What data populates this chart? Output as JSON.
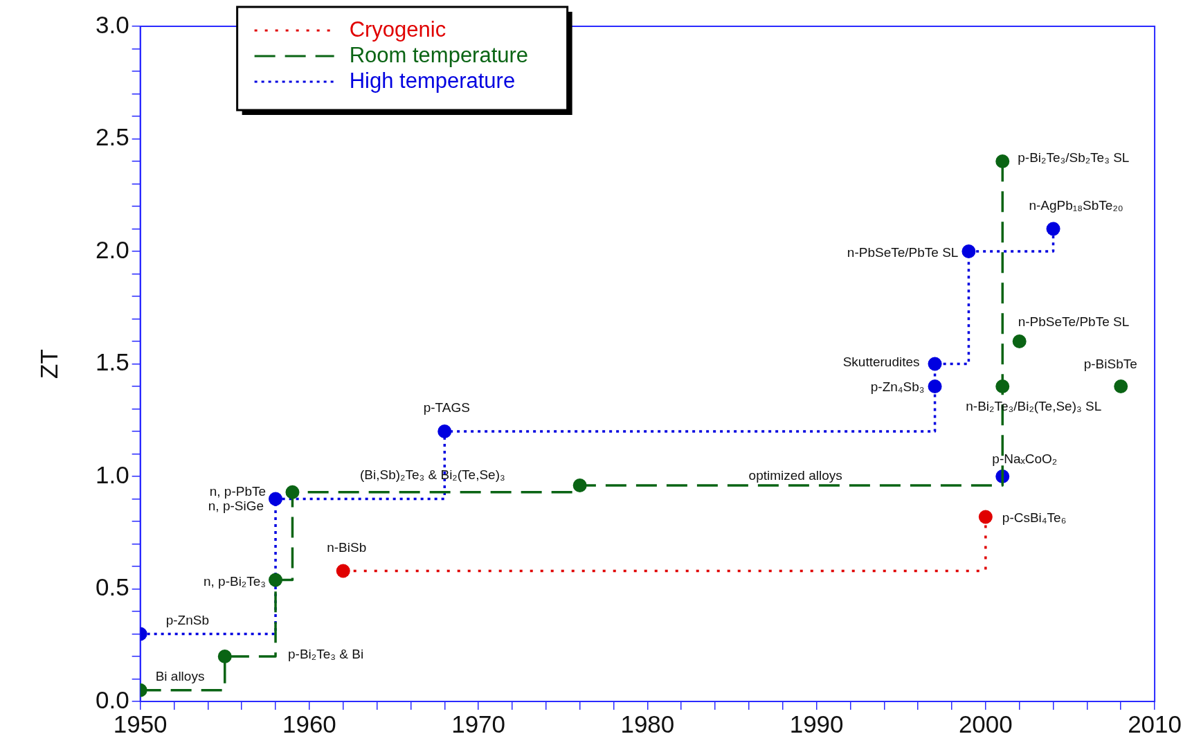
{
  "chart_data": {
    "type": "step",
    "ylabel": "ZT",
    "legend": "top left",
    "marker": "circle",
    "grid": false,
    "xlim": [
      1950,
      2010
    ],
    "ylim": [
      0,
      3
    ],
    "xticks": [
      1950,
      {
        "value": 1952,
        "label": null
      },
      {
        "value": 1954,
        "label": null
      },
      {
        "value": 1956,
        "label": null
      },
      {
        "value": 1958,
        "label": null
      },
      1960,
      {
        "value": 1962,
        "label": null
      },
      {
        "value": 1964,
        "label": null
      },
      {
        "value": 1966,
        "label": null
      },
      {
        "value": 1968,
        "label": null
      },
      1970,
      {
        "value": 1972,
        "label": null
      },
      {
        "value": 1974,
        "label": null
      },
      {
        "value": 1976,
        "label": null
      },
      {
        "value": 1978,
        "label": null
      },
      1980,
      {
        "value": 1982,
        "label": null
      },
      {
        "value": 1984,
        "label": null
      },
      {
        "value": 1986,
        "label": null
      },
      {
        "value": 1988,
        "label": null
      },
      1990,
      {
        "value": 1992,
        "label": null
      },
      {
        "value": 1994,
        "label": null
      },
      {
        "value": 1996,
        "label": null
      },
      {
        "value": 1998,
        "label": null
      },
      2000,
      {
        "value": 2002,
        "label": null
      },
      {
        "value": 2004,
        "label": null
      },
      {
        "value": 2006,
        "label": null
      },
      {
        "value": 2008,
        "label": null
      },
      2010
    ],
    "yticks": [
      {
        "value": 0,
        "label": "0.0"
      },
      {
        "value": 0.1,
        "label": null
      },
      {
        "value": 0.2,
        "label": null
      },
      {
        "value": 0.3,
        "label": null
      },
      {
        "value": 0.4,
        "label": null
      },
      0.5,
      {
        "value": 0.6,
        "label": null
      },
      {
        "value": 0.7,
        "label": null
      },
      {
        "value": 0.8,
        "label": null
      },
      {
        "value": 0.9,
        "label": null
      },
      {
        "value": 1,
        "label": "1.0"
      },
      {
        "value": 1.1,
        "label": null
      },
      {
        "value": 1.2,
        "label": null
      },
      {
        "value": 1.3,
        "label": null
      },
      {
        "value": 1.4,
        "label": null
      },
      1.5,
      {
        "value": 1.6,
        "label": null
      },
      {
        "value": 1.7,
        "label": null
      },
      {
        "value": 1.8,
        "label": null
      },
      {
        "value": 1.9,
        "label": null
      },
      {
        "value": 2,
        "label": "2.0"
      },
      {
        "value": 2.1,
        "label": null
      },
      {
        "value": 2.2,
        "label": null
      },
      {
        "value": 2.3,
        "label": null
      },
      {
        "value": 2.4,
        "label": null
      },
      2.5,
      {
        "value": 2.6,
        "label": null
      },
      {
        "value": 2.7,
        "label": null
      },
      {
        "value": 2.8,
        "label": null
      },
      {
        "value": 2.9,
        "label": null
      },
      {
        "value": 3,
        "label": "3.0"
      }
    ],
    "series": [
      {
        "name": "Cryogenic",
        "color": "#e00000",
        "line_style": "dotted",
        "x": [
          1962,
          2000
        ],
        "values": [
          0.58,
          0.82
        ]
      },
      {
        "name": "Room temperature",
        "color": "#0a6414",
        "line_style": "dashed",
        "x": [
          1950,
          1955,
          1958,
          1959,
          1976,
          2001,
          2001
        ],
        "values": [
          0.05,
          0.2,
          0.54,
          0.93,
          0.96,
          1.4,
          2.4
        ]
      },
      {
        "name": "High temperature",
        "color": "#0000e0",
        "line_style": "dotted",
        "x": [
          1950,
          1958,
          1968,
          1997,
          1997,
          1999,
          2004
        ],
        "values": [
          0.3,
          0.9,
          1.2,
          1.4,
          1.5,
          2.0,
          2.1
        ]
      },
      {
        "type": "scatter",
        "color": "#0a6414",
        "x": [
          2002,
          2008
        ],
        "values": [
          1.6,
          1.4
        ]
      },
      {
        "type": "scatter",
        "color": "#0000e0",
        "x": [
          2001
        ],
        "values": [
          1.0
        ]
      }
    ],
    "annotations": [
      {
        "text": "Bi alloys",
        "x": 1950,
        "y": 0.05
      },
      {
        "text": "p-Bi₂Te₃ & Bi",
        "x": 1958,
        "y": 0.2
      },
      {
        "text": "p-ZnSb",
        "x": 1950,
        "y": 0.3
      },
      {
        "text": "n, p-Bi₂Te₃",
        "x": 1958,
        "y": 0.54
      },
      {
        "text": "n, p-PbTe",
        "x": 1958,
        "y": 0.9
      },
      {
        "text": "n, p-SiGe",
        "x": 1958,
        "y": 0.9
      },
      {
        "text": "(Bi,Sb)₂Te₃ & Bi₂(Te,Se)₃",
        "x": 1967,
        "y": 0.93
      },
      {
        "text": "optimized alloys",
        "x": 1989,
        "y": 0.96
      },
      {
        "text": "n-BiSb",
        "x": 1962,
        "y": 0.58
      },
      {
        "text": "p-TAGS",
        "x": 1968,
        "y": 1.2
      },
      {
        "text": "Skutterudites",
        "x": 1997,
        "y": 1.5
      },
      {
        "text": "p-Zn₄Sb₃",
        "x": 1997,
        "y": 1.4
      },
      {
        "text": "n-PbSeTe/PbTe SL",
        "x": 1999,
        "y": 2.0
      },
      {
        "text": "n-AgPb₁₈SbTe₂₀",
        "x": 2004,
        "y": 2.1
      },
      {
        "text": "p-Bi₂Te₃/Sb₂Te₃ SL",
        "x": 2001,
        "y": 2.4
      },
      {
        "text": "n-PbSeTe/PbTe SL",
        "x": 2002,
        "y": 1.6
      },
      {
        "text": "p-BiSbTe",
        "x": 2008,
        "y": 1.4
      },
      {
        "text": "n-Bi₂Te₃/Bi₂(Te,Se)₃ SL",
        "x": 2001,
        "y": 1.4
      },
      {
        "text": "p-NaₓCoO₂",
        "x": 2001,
        "y": 1.0
      },
      {
        "text": "p-CsBi₄Te₆",
        "x": 2000,
        "y": 0.82
      }
    ]
  }
}
